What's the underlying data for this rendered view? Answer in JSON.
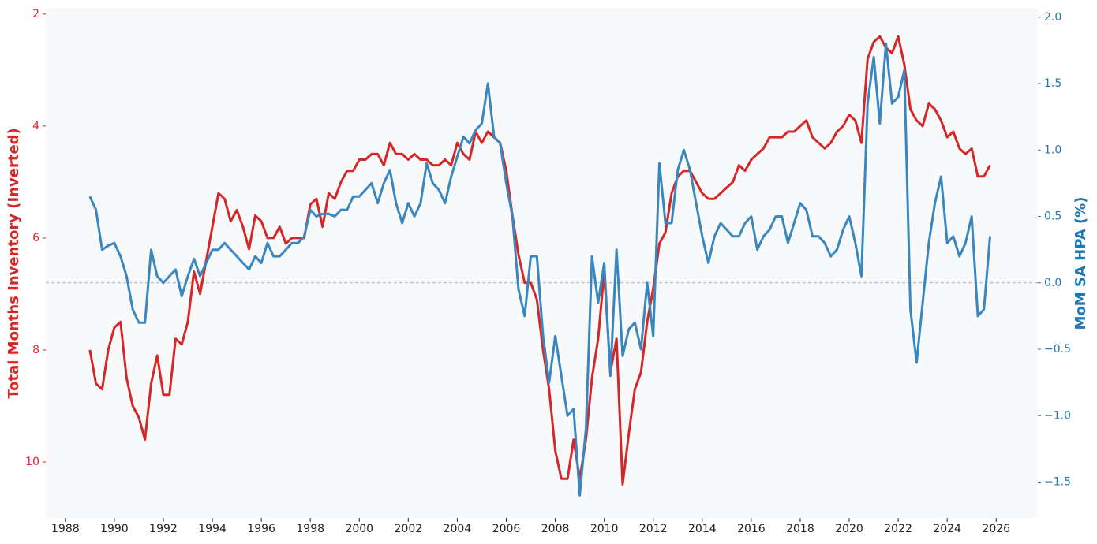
{
  "chart_data": {
    "type": "line",
    "ylabel": "Total Months Inventory (Inverted)",
    "y2label": "MoM SA HPA (%)",
    "x": [
      1989.0,
      1989.25,
      1989.5,
      1989.75,
      1990.0,
      1990.25,
      1990.5,
      1990.75,
      1991.0,
      1991.25,
      1991.5,
      1991.75,
      1992.0,
      1992.25,
      1992.5,
      1992.75,
      1993.0,
      1993.25,
      1993.5,
      1993.75,
      1994.0,
      1994.25,
      1994.5,
      1994.75,
      1995.0,
      1995.25,
      1995.5,
      1995.75,
      1996.0,
      1996.25,
      1996.5,
      1996.75,
      1997.0,
      1997.25,
      1997.5,
      1997.75,
      1998.0,
      1998.25,
      1998.5,
      1998.75,
      1999.0,
      1999.25,
      1999.5,
      1999.75,
      2000.0,
      2000.25,
      2000.5,
      2000.75,
      2001.0,
      2001.25,
      2001.5,
      2001.75,
      2002.0,
      2002.25,
      2002.5,
      2002.75,
      2003.0,
      2003.25,
      2003.5,
      2003.75,
      2004.0,
      2004.25,
      2004.5,
      2004.75,
      2005.0,
      2005.25,
      2005.5,
      2005.75,
      2006.0,
      2006.25,
      2006.5,
      2006.75,
      2007.0,
      2007.25,
      2007.5,
      2007.75,
      2008.0,
      2008.25,
      2008.5,
      2008.75,
      2009.0,
      2009.25,
      2009.5,
      2009.75,
      2010.0,
      2010.25,
      2010.5,
      2010.75,
      2011.0,
      2011.25,
      2011.5,
      2011.75,
      2012.0,
      2012.25,
      2012.5,
      2012.75,
      2013.0,
      2013.25,
      2013.5,
      2013.75,
      2014.0,
      2014.25,
      2014.5,
      2014.75,
      2015.0,
      2015.25,
      2015.5,
      2015.75,
      2016.0,
      2016.25,
      2016.5,
      2016.75,
      2017.0,
      2017.25,
      2017.5,
      2017.75,
      2018.0,
      2018.25,
      2018.5,
      2018.75,
      2019.0,
      2019.25,
      2019.5,
      2019.75,
      2020.0,
      2020.25,
      2020.5,
      2020.75,
      2021.0,
      2021.25,
      2021.5,
      2021.75,
      2022.0,
      2022.25,
      2022.5,
      2022.75,
      2023.0,
      2023.25,
      2023.5,
      2023.75,
      2024.0,
      2024.25,
      2024.5,
      2024.75,
      2025.0,
      2025.25,
      2025.5,
      2025.75
    ],
    "series": [
      {
        "color": "#d62728",
        "axis": "y",
        "values": [
          8.0,
          8.6,
          8.7,
          8.0,
          7.6,
          7.5,
          8.5,
          9.0,
          9.2,
          9.6,
          8.6,
          8.1,
          8.8,
          8.8,
          7.8,
          7.9,
          7.5,
          6.6,
          7.0,
          6.4,
          5.8,
          5.2,
          5.3,
          5.7,
          5.5,
          5.8,
          6.2,
          5.6,
          5.7,
          6.0,
          6.0,
          5.8,
          6.1,
          6.0,
          6.0,
          6.0,
          5.4,
          5.3,
          5.8,
          5.2,
          5.3,
          5.0,
          4.8,
          4.8,
          4.6,
          4.6,
          4.5,
          4.5,
          4.7,
          4.3,
          4.5,
          4.5,
          4.6,
          4.5,
          4.6,
          4.6,
          4.7,
          4.7,
          4.6,
          4.7,
          4.3,
          4.5,
          4.6,
          4.1,
          4.3,
          4.1,
          4.2,
          4.3,
          4.8,
          5.6,
          6.3,
          6.8,
          6.8,
          7.1,
          8.0,
          8.7,
          9.8,
          10.3,
          10.3,
          9.6,
          10.3,
          9.6,
          8.5,
          7.8,
          6.6,
          8.4,
          7.8,
          10.4,
          9.5,
          8.7,
          8.4,
          7.5,
          6.9,
          6.1,
          5.9,
          5.2,
          4.9,
          4.8,
          4.8,
          5.0,
          5.2,
          5.3,
          5.3,
          5.2,
          5.1,
          5.0,
          4.7,
          4.8,
          4.6,
          4.5,
          4.4,
          4.2,
          4.2,
          4.2,
          4.1,
          4.1,
          4.0,
          3.9,
          4.2,
          4.3,
          4.4,
          4.3,
          4.1,
          4.0,
          3.8,
          3.9,
          4.3,
          2.8,
          2.5,
          2.4,
          2.6,
          2.7,
          2.4,
          2.9,
          3.7,
          3.9,
          4.0,
          3.6,
          3.7,
          3.9,
          4.2,
          4.1,
          4.4,
          4.5,
          4.4,
          4.9,
          4.9,
          4.7
        ]
      },
      {
        "color": "#3a87c0",
        "axis": "y2",
        "values": [
          0.65,
          0.55,
          0.25,
          0.28,
          0.3,
          0.2,
          0.05,
          -0.2,
          -0.3,
          -0.3,
          0.25,
          0.05,
          0.0,
          0.05,
          0.1,
          -0.1,
          0.05,
          0.18,
          0.05,
          0.15,
          0.25,
          0.25,
          0.3,
          0.25,
          0.2,
          0.15,
          0.1,
          0.2,
          0.15,
          0.3,
          0.2,
          0.2,
          0.25,
          0.3,
          0.3,
          0.35,
          0.55,
          0.5,
          0.52,
          0.52,
          0.5,
          0.55,
          0.55,
          0.65,
          0.65,
          0.7,
          0.75,
          0.6,
          0.75,
          0.85,
          0.6,
          0.45,
          0.6,
          0.5,
          0.6,
          0.9,
          0.75,
          0.7,
          0.6,
          0.8,
          0.95,
          1.1,
          1.05,
          1.15,
          1.2,
          1.5,
          1.1,
          1.05,
          0.75,
          0.5,
          -0.05,
          -0.25,
          0.2,
          0.2,
          -0.4,
          -0.75,
          -0.4,
          -0.7,
          -1.0,
          -0.95,
          -1.6,
          -1.1,
          0.2,
          -0.15,
          0.15,
          -0.7,
          0.25,
          -0.55,
          -0.35,
          -0.3,
          -0.5,
          0.0,
          -0.4,
          0.9,
          0.45,
          0.45,
          0.85,
          1.0,
          0.85,
          0.6,
          0.35,
          0.15,
          0.35,
          0.45,
          0.4,
          0.35,
          0.35,
          0.45,
          0.5,
          0.25,
          0.35,
          0.4,
          0.5,
          0.5,
          0.3,
          0.45,
          0.6,
          0.55,
          0.35,
          0.35,
          0.3,
          0.2,
          0.25,
          0.4,
          0.5,
          0.3,
          0.05,
          1.35,
          1.7,
          1.2,
          1.8,
          1.35,
          1.4,
          1.6,
          -0.2,
          -0.6,
          -0.15,
          0.3,
          0.6,
          0.8,
          0.3,
          0.35,
          0.2,
          0.3,
          0.5,
          -0.25,
          -0.2,
          0.35
        ]
      }
    ],
    "xlim": [
      1987.2,
      2027.7
    ],
    "xticks": [
      1988,
      1990,
      1992,
      1994,
      1996,
      1998,
      2000,
      2002,
      2004,
      2006,
      2008,
      2010,
      2012,
      2014,
      2016,
      2018,
      2020,
      2022,
      2024,
      2026
    ],
    "ylim": [
      1.89,
      11.0
    ],
    "y_inverted": true,
    "yticks": [
      2,
      4,
      6,
      8,
      10
    ],
    "y2lim": [
      -1.77,
      2.07
    ],
    "y2ticks": [
      {
        "value": 2.0,
        "label": "2.0"
      },
      {
        "value": 1.5,
        "label": "1.5"
      },
      {
        "value": 1.0,
        "label": "1.0"
      },
      {
        "value": 0.5,
        "label": "0.5"
      },
      {
        "value": 0.0,
        "label": "0.0"
      },
      {
        "value": -0.5,
        "label": "−0.5"
      },
      {
        "value": -1.0,
        "label": "−1.0"
      },
      {
        "value": -1.5,
        "label": "−1.5"
      }
    ],
    "hline": {
      "value": 0,
      "axis": "y2",
      "style": "dashed",
      "color": "#b0b0b0"
    },
    "grid": false
  }
}
